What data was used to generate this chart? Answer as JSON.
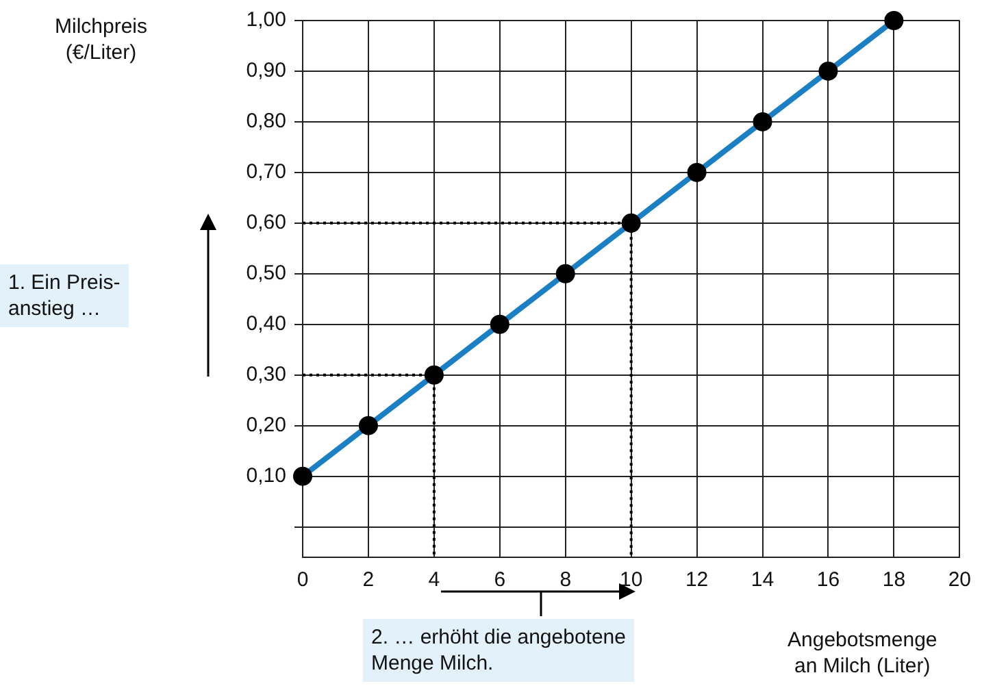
{
  "chart_data": {
    "type": "line",
    "xlabel": "Angebotsmenge\nan Milch (Liter)",
    "ylabel": "Milchpreis\n(€/Liter)",
    "annotations": [
      "1. Ein Preis-\nanstieg …",
      "2. … erhöht die angebotene\nMenge Milch."
    ],
    "series": [
      {
        "color": "#1a7fc4",
        "x": [
          0,
          2,
          4,
          6,
          8,
          10,
          12,
          14,
          16,
          18
        ],
        "values": [
          0.1,
          0.2,
          0.3,
          0.4,
          0.5,
          0.6,
          0.7,
          0.8,
          0.9,
          1.0
        ]
      },
      {
        "color": "#000000",
        "line_style": "dotted",
        "marker": "none",
        "x": [
          0,
          4,
          4
        ],
        "values": [
          0.3,
          0.3,
          -0.06
        ]
      },
      {
        "color": "#000000",
        "line_style": "dotted",
        "marker": "none",
        "x": [
          0,
          10,
          10
        ],
        "values": [
          0.6,
          0.6,
          -0.06
        ]
      }
    ],
    "xlim": [
      0,
      20
    ],
    "xticks": [
      0,
      2,
      4,
      6,
      8,
      10,
      12,
      14,
      16,
      18,
      20
    ],
    "ylim": [
      -0.06,
      1.0
    ],
    "yticks": [
      {
        "value": 0,
        "label": null
      },
      {
        "value": 0.1,
        "label": "0,10"
      },
      {
        "value": 0.2,
        "label": "0,20"
      },
      {
        "value": 0.3,
        "label": "0,30"
      },
      {
        "value": 0.4,
        "label": "0,40"
      },
      {
        "value": 0.5,
        "label": "0,50"
      },
      {
        "value": 0.6,
        "label": "0,60"
      },
      {
        "value": 0.7,
        "label": "0,70"
      },
      {
        "value": 0.8,
        "label": "0,80"
      },
      {
        "value": 0.9,
        "label": "0,90"
      },
      {
        "value": 1.0,
        "label": "1,00"
      }
    ],
    "grid": true,
    "legend": false,
    "marker": "circle",
    "line_style": "solid"
  }
}
